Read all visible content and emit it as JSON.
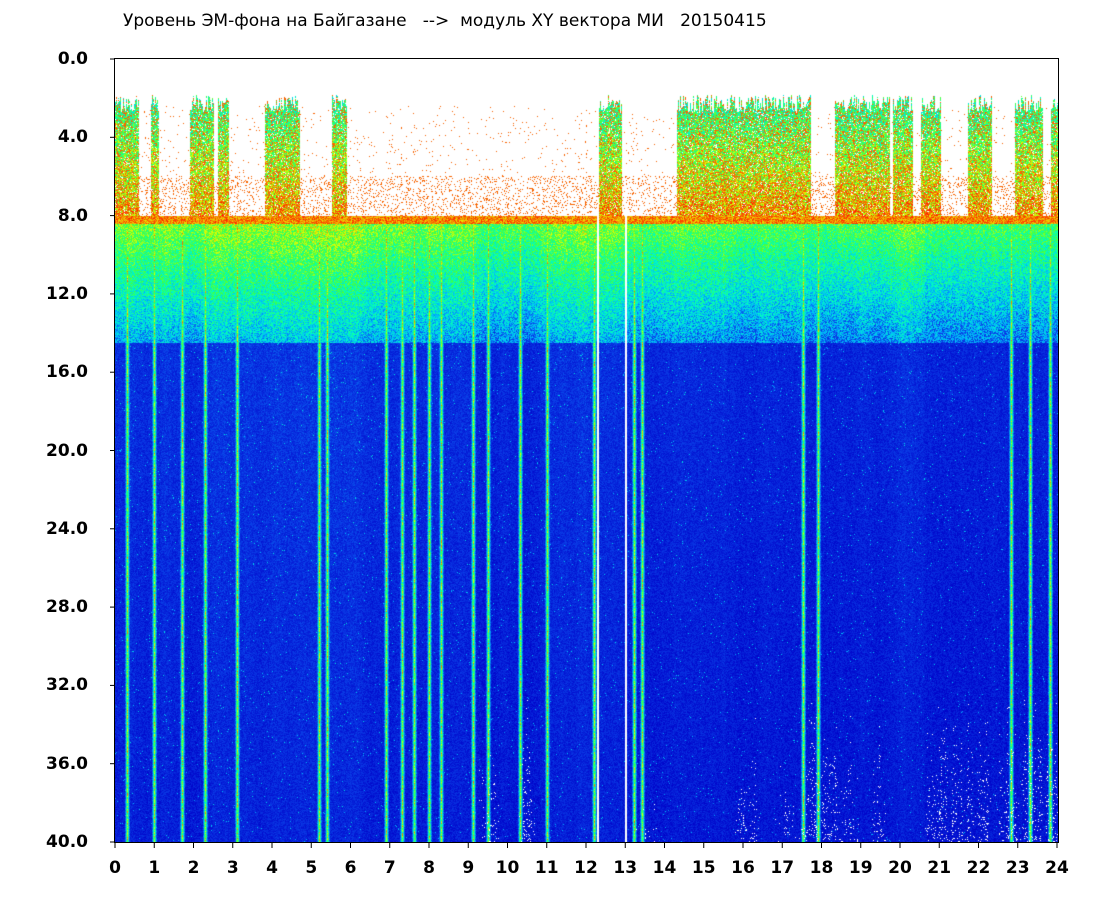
{
  "chart_data": {
    "type": "heatmap",
    "title": "Уровень ЭМ-фона на Байгазане   -->  модуль XY вектора МИ   20150415",
    "xlabel": "",
    "ylabel": "",
    "xlim": [
      0,
      24
    ],
    "ylim": [
      0.0,
      40.0
    ],
    "y_inverted": true,
    "x_ticks": [
      "0",
      "1",
      "2",
      "3",
      "4",
      "5",
      "6",
      "7",
      "8",
      "9",
      "10",
      "11",
      "12",
      "13",
      "14",
      "15",
      "16",
      "17",
      "18",
      "19",
      "20",
      "21",
      "22",
      "23",
      "24"
    ],
    "y_ticks": [
      "0.0",
      "4.0",
      "8.0",
      "12.0",
      "16.0",
      "20.0",
      "24.0",
      "28.0",
      "32.0",
      "36.0",
      "40.0"
    ],
    "colorscale": [
      "#0000c8",
      "#0a3ce6",
      "#00b4ff",
      "#00ffc0",
      "#40ff40",
      "#e6ff00",
      "#ff2000"
    ],
    "grid": false,
    "legend": "none",
    "bands": {
      "upper_band_y": [
        2.0,
        8.0
      ],
      "upper_band_active_hours": [
        [
          0,
          0.6
        ],
        [
          0.9,
          1.1
        ],
        [
          1.9,
          2.5
        ],
        [
          2.6,
          2.9
        ],
        [
          3.8,
          4.7
        ],
        [
          5.5,
          5.9
        ],
        [
          12.3,
          12.9
        ],
        [
          14.3,
          17.7
        ],
        [
          18.3,
          19.7
        ],
        [
          19.8,
          20.3
        ],
        [
          20.5,
          21.0
        ],
        [
          21.7,
          22.3
        ],
        [
          22.9,
          23.6
        ],
        [
          23.8,
          24.0
        ]
      ],
      "mid_band_y": [
        8.0,
        14.5
      ],
      "low_level_y": [
        14.5,
        40.0
      ]
    },
    "strong_columns_hours": [
      0.3,
      1.0,
      1.7,
      2.3,
      3.1,
      5.2,
      5.4,
      6.9,
      7.3,
      7.6,
      8.0,
      8.3,
      9.1,
      9.5,
      10.3,
      11.0,
      12.2,
      13.2,
      13.4,
      17.5,
      17.9,
      22.8,
      23.3,
      23.8
    ],
    "white_gap_columns_hours": [
      12.3,
      13.0
    ]
  }
}
